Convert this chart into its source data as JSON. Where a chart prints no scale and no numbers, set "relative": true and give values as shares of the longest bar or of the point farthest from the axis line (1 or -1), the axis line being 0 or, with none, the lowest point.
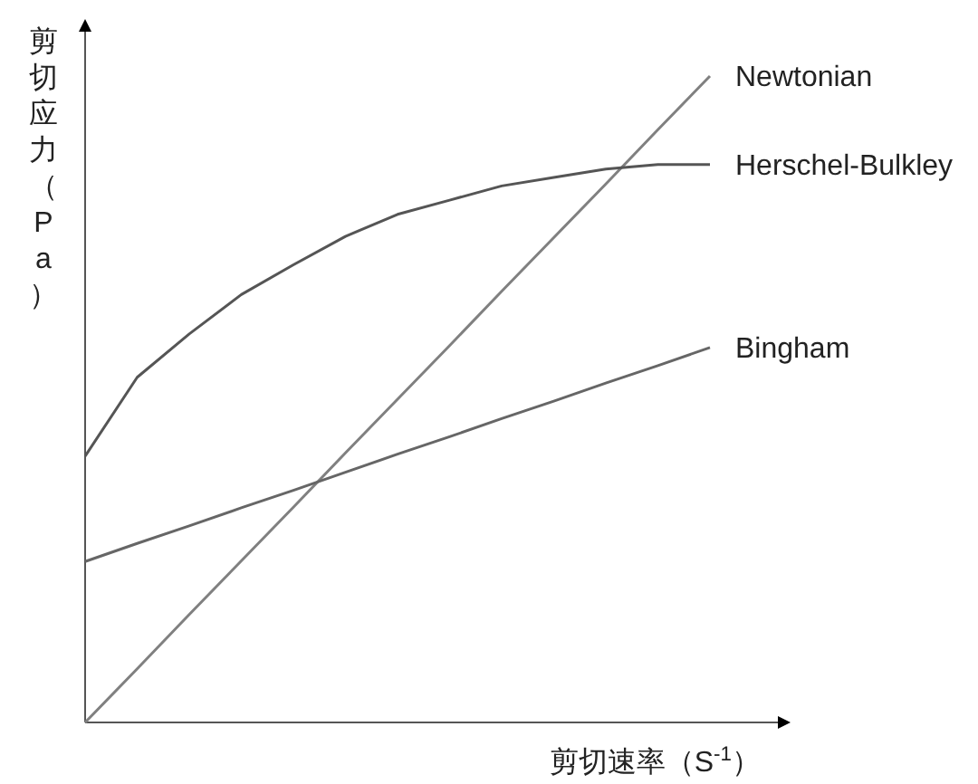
{
  "chart_data": {
    "type": "line",
    "relative": true,
    "xlabel": "剪切速率（S$^{-1}$）",
    "ylabel": "剪切应力（Pa）",
    "categories": [
      null,
      null,
      null,
      null,
      null,
      null,
      null,
      null,
      null,
      null,
      null,
      null,
      null
    ],
    "series": [
      {
        "name": "Newtonian",
        "color": "#808080",
        "values": [
          0,
          0.083,
          0.167,
          0.25,
          0.333,
          0.417,
          0.5,
          0.583,
          0.667,
          0.75,
          0.833,
          0.917,
          1
        ]
      },
      {
        "name": "Herschel-Bulkley",
        "color": "#555555",
        "values": [
          0.412,
          0.534,
          0.601,
          0.662,
          0.708,
          0.752,
          0.786,
          0.808,
          0.83,
          0.843,
          0.856,
          0.863,
          0.863
        ]
      },
      {
        "name": "Bingham",
        "color": "#666666",
        "values": [
          0.249,
          0.277,
          0.304,
          0.332,
          0.359,
          0.387,
          0.415,
          0.442,
          0.47,
          0.497,
          0.525,
          0.552,
          0.58
        ]
      }
    ]
  }
}
